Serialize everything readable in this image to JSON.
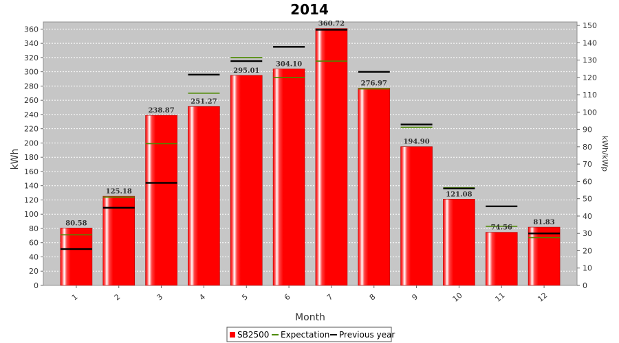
{
  "chart_data": {
    "type": "bar",
    "title": "2014",
    "xlabel": "Month",
    "ylabel": "kWh",
    "ylabel_right": "kWh/kWp",
    "ylim": [
      0,
      370
    ],
    "ylim_right": [
      0,
      152
    ],
    "y_ticks": [
      0,
      20,
      40,
      60,
      80,
      100,
      120,
      140,
      160,
      180,
      200,
      220,
      240,
      260,
      280,
      300,
      320,
      340,
      360
    ],
    "y_right_ticks": [
      0,
      10,
      20,
      30,
      40,
      50,
      60,
      70,
      80,
      90,
      100,
      110,
      120,
      130,
      140,
      150
    ],
    "categories": [
      "1",
      "2",
      "3",
      "4",
      "5",
      "6",
      "7",
      "8",
      "9",
      "10",
      "11",
      "12"
    ],
    "grid": true,
    "legend_position": "bottom",
    "series": [
      {
        "name": "SB2500",
        "kind": "bar",
        "color": "#ff0000",
        "values": [
          80.58,
          125.18,
          238.87,
          251.27,
          295.01,
          304.1,
          360.72,
          276.97,
          194.9,
          121.08,
          74.56,
          81.83
        ],
        "labels": [
          "80.58",
          "125.18",
          "238.87",
          "251.27",
          "295.01",
          "304.10",
          "360.72",
          "276.97",
          "194.90",
          "121.08",
          "74.56",
          "81.83"
        ]
      },
      {
        "name": "Expectation",
        "kind": "level",
        "color": "#4c8a00",
        "values": [
          71,
          124,
          199,
          270,
          320,
          292,
          315,
          276,
          222,
          137,
          83,
          67
        ]
      },
      {
        "name": "Previous year",
        "kind": "level",
        "color": "#000000",
        "values": [
          51,
          109,
          144,
          296,
          315,
          335,
          359,
          300,
          226,
          136,
          111,
          73
        ]
      }
    ]
  }
}
